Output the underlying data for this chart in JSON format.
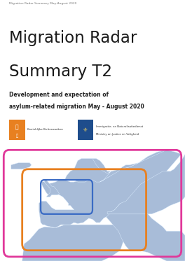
{
  "header_text": "Migration Radar Summary May-August 2020",
  "title_line1": "Migration Radar",
  "title_line2": "Summary T2",
  "subtitle_line1": "Development and expectation of",
  "subtitle_line2": "asylum-related migration May - August 2020",
  "bg_color": "#ffffff",
  "title_color": "#1a1a1a",
  "subtitle_color": "#222222",
  "header_color": "#777777",
  "map_bg_color": "#c8dff0",
  "land_color": "#a8bcd8",
  "border_color": "#ddeeff",
  "pink_color": "#e0389a",
  "orange_color": "#e88020",
  "blue_color": "#3a6bc4",
  "logo_orange_color": "#e88020",
  "logo_blue_color": "#1e4d8c",
  "logo_orange_text": "Koninklijke Buitenzaaken",
  "logo_blue_text1": "Immigratie- en Naturalisatiedienst",
  "logo_blue_text2": "Ministry on Justice en Veligheid"
}
